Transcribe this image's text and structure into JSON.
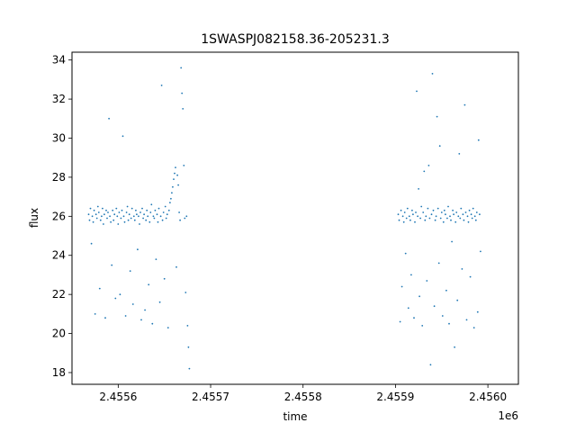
{
  "chart_data": {
    "type": "scatter",
    "title": "1SWASPJ082158.36-205231.3",
    "xlabel": "time",
    "ylabel": "flux",
    "x_offset_label": "1e6",
    "x_tick_labels": [
      "2.4556",
      "2.4557",
      "2.4558",
      "2.4559",
      "2.4560"
    ],
    "x_ticks": [
      2455600,
      2455700,
      2455800,
      2455900,
      2456000
    ],
    "y_ticks": [
      18,
      20,
      22,
      24,
      26,
      28,
      30,
      32,
      34
    ],
    "xlim": [
      2455550,
      2456033
    ],
    "ylim": [
      17.4,
      34.4
    ],
    "grid": false,
    "marker_color": "#1f77b4",
    "series": [
      {
        "points": [
          [
            2455568,
            26.1
          ],
          [
            2455569,
            25.8
          ],
          [
            2455570,
            26.4
          ],
          [
            2455571,
            24.6
          ],
          [
            2455572,
            26.0
          ],
          [
            2455573,
            25.7
          ],
          [
            2455574,
            26.3
          ],
          [
            2455575,
            21.0
          ],
          [
            2455576,
            26.1
          ],
          [
            2455577,
            25.9
          ],
          [
            2455578,
            26.5
          ],
          [
            2455579,
            26.2
          ],
          [
            2455580,
            22.3
          ],
          [
            2455581,
            25.8
          ],
          [
            2455582,
            26.0
          ],
          [
            2455583,
            26.4
          ],
          [
            2455584,
            25.6
          ],
          [
            2455585,
            26.1
          ],
          [
            2455586,
            20.8
          ],
          [
            2455587,
            26.3
          ],
          [
            2455588,
            25.9
          ],
          [
            2455589,
            26.2
          ],
          [
            2455590,
            31.0
          ],
          [
            2455591,
            26.0
          ],
          [
            2455592,
            25.7
          ],
          [
            2455593,
            23.5
          ],
          [
            2455594,
            26.3
          ],
          [
            2455595,
            25.8
          ],
          [
            2455596,
            26.1
          ],
          [
            2455597,
            21.8
          ],
          [
            2455598,
            26.4
          ],
          [
            2455599,
            26.0
          ],
          [
            2455600,
            25.6
          ],
          [
            2455601,
            26.2
          ],
          [
            2455602,
            22.0
          ],
          [
            2455603,
            25.9
          ],
          [
            2455604,
            26.3
          ],
          [
            2455605,
            30.1
          ],
          [
            2455606,
            26.0
          ],
          [
            2455607,
            25.7
          ],
          [
            2455608,
            20.9
          ],
          [
            2455609,
            26.2
          ],
          [
            2455610,
            26.5
          ],
          [
            2455611,
            25.8
          ],
          [
            2455612,
            26.1
          ],
          [
            2455613,
            23.2
          ],
          [
            2455614,
            25.9
          ],
          [
            2455615,
            26.4
          ],
          [
            2455616,
            21.5
          ],
          [
            2455617,
            26.0
          ],
          [
            2455618,
            25.8
          ],
          [
            2455619,
            26.3
          ],
          [
            2455620,
            26.1
          ],
          [
            2455621,
            24.3
          ],
          [
            2455622,
            26.0
          ],
          [
            2455623,
            25.6
          ],
          [
            2455624,
            26.2
          ],
          [
            2455625,
            20.7
          ],
          [
            2455626,
            26.4
          ],
          [
            2455627,
            25.9
          ],
          [
            2455628,
            26.1
          ],
          [
            2455629,
            21.2
          ],
          [
            2455630,
            25.8
          ],
          [
            2455631,
            26.3
          ],
          [
            2455632,
            26.0
          ],
          [
            2455633,
            22.5
          ],
          [
            2455634,
            25.7
          ],
          [
            2455635,
            26.2
          ],
          [
            2455636,
            26.6
          ],
          [
            2455637,
            20.5
          ],
          [
            2455638,
            26.0
          ],
          [
            2455639,
            25.9
          ],
          [
            2455640,
            26.3
          ],
          [
            2455641,
            23.8
          ],
          [
            2455642,
            26.1
          ],
          [
            2455643,
            25.7
          ],
          [
            2455644,
            26.4
          ],
          [
            2455645,
            21.6
          ],
          [
            2455646,
            26.0
          ],
          [
            2455647,
            32.7
          ],
          [
            2455648,
            25.8
          ],
          [
            2455649,
            26.2
          ],
          [
            2455650,
            22.8
          ],
          [
            2455651,
            26.5
          ],
          [
            2455652,
            25.9
          ],
          [
            2455653,
            26.1
          ],
          [
            2455654,
            20.3
          ],
          [
            2455655,
            26.3
          ],
          [
            2455656,
            26.7
          ],
          [
            2455657,
            26.9
          ],
          [
            2455658,
            27.2
          ],
          [
            2455659,
            27.5
          ],
          [
            2455660,
            27.9
          ],
          [
            2455661,
            28.2
          ],
          [
            2455662,
            28.5
          ],
          [
            2455663,
            23.4
          ],
          [
            2455664,
            28.1
          ],
          [
            2455665,
            27.6
          ],
          [
            2455666,
            26.2
          ],
          [
            2455667,
            25.8
          ],
          [
            2455668,
            33.6
          ],
          [
            2455669,
            32.3
          ],
          [
            2455670,
            31.5
          ],
          [
            2455671,
            28.6
          ],
          [
            2455672,
            25.9
          ],
          [
            2455673,
            22.1
          ],
          [
            2455674,
            26.0
          ],
          [
            2455675,
            20.4
          ],
          [
            2455676,
            19.3
          ],
          [
            2455677,
            18.2
          ],
          [
            2455903,
            26.1
          ],
          [
            2455904,
            25.8
          ],
          [
            2455905,
            20.6
          ],
          [
            2455906,
            26.3
          ],
          [
            2455907,
            22.4
          ],
          [
            2455908,
            26.0
          ],
          [
            2455909,
            25.7
          ],
          [
            2455910,
            26.2
          ],
          [
            2455911,
            24.1
          ],
          [
            2455912,
            25.9
          ],
          [
            2455913,
            26.4
          ],
          [
            2455914,
            21.3
          ],
          [
            2455915,
            26.0
          ],
          [
            2455916,
            25.8
          ],
          [
            2455917,
            23.0
          ],
          [
            2455918,
            26.3
          ],
          [
            2455919,
            26.1
          ],
          [
            2455920,
            20.8
          ],
          [
            2455921,
            25.7
          ],
          [
            2455922,
            26.2
          ],
          [
            2455923,
            32.4
          ],
          [
            2455924,
            26.0
          ],
          [
            2455925,
            27.4
          ],
          [
            2455926,
            21.9
          ],
          [
            2455927,
            25.9
          ],
          [
            2455928,
            26.5
          ],
          [
            2455929,
            20.4
          ],
          [
            2455930,
            26.2
          ],
          [
            2455931,
            28.3
          ],
          [
            2455932,
            25.8
          ],
          [
            2455933,
            26.0
          ],
          [
            2455934,
            22.7
          ],
          [
            2455935,
            26.4
          ],
          [
            2455936,
            28.6
          ],
          [
            2455937,
            25.9
          ],
          [
            2455938,
            18.4
          ],
          [
            2455939,
            26.1
          ],
          [
            2455940,
            33.3
          ],
          [
            2455941,
            26.3
          ],
          [
            2455942,
            21.4
          ],
          [
            2455943,
            25.8
          ],
          [
            2455944,
            26.0
          ],
          [
            2455945,
            31.1
          ],
          [
            2455946,
            26.4
          ],
          [
            2455947,
            23.6
          ],
          [
            2455948,
            29.6
          ],
          [
            2455949,
            25.9
          ],
          [
            2455950,
            26.2
          ],
          [
            2455951,
            20.9
          ],
          [
            2455952,
            25.7
          ],
          [
            2455953,
            26.3
          ],
          [
            2455954,
            26.1
          ],
          [
            2455955,
            22.2
          ],
          [
            2455956,
            25.9
          ],
          [
            2455957,
            26.5
          ],
          [
            2455958,
            20.5
          ],
          [
            2455959,
            26.0
          ],
          [
            2455960,
            25.8
          ],
          [
            2455961,
            24.7
          ],
          [
            2455962,
            26.3
          ],
          [
            2455963,
            26.1
          ],
          [
            2455964,
            19.3
          ],
          [
            2455965,
            25.7
          ],
          [
            2455966,
            26.2
          ],
          [
            2455967,
            21.7
          ],
          [
            2455968,
            26.0
          ],
          [
            2455969,
            29.2
          ],
          [
            2455970,
            25.9
          ],
          [
            2455971,
            26.4
          ],
          [
            2455972,
            23.3
          ],
          [
            2455973,
            26.1
          ],
          [
            2455974,
            25.8
          ],
          [
            2455975,
            31.7
          ],
          [
            2455976,
            26.2
          ],
          [
            2455977,
            20.7
          ],
          [
            2455978,
            26.0
          ],
          [
            2455979,
            25.7
          ],
          [
            2455980,
            26.3
          ],
          [
            2455981,
            22.9
          ],
          [
            2455982,
            26.1
          ],
          [
            2455983,
            25.9
          ],
          [
            2455984,
            26.4
          ],
          [
            2455985,
            20.3
          ],
          [
            2455986,
            26.0
          ],
          [
            2455987,
            25.8
          ],
          [
            2455988,
            26.2
          ],
          [
            2455989,
            21.1
          ],
          [
            2455990,
            29.9
          ],
          [
            2455991,
            26.1
          ],
          [
            2455992,
            24.2
          ]
        ]
      }
    ]
  }
}
